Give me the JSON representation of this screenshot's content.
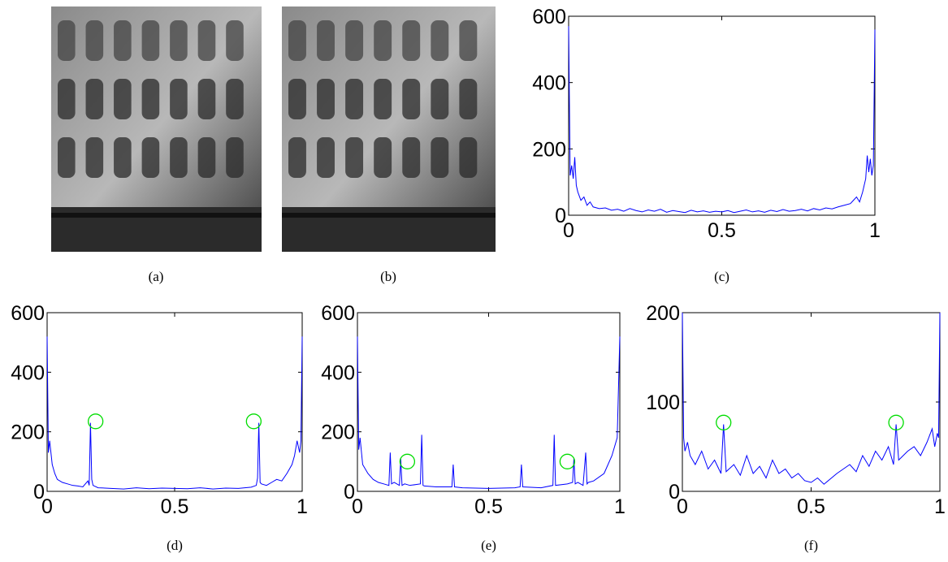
{
  "images": [
    {
      "caption": "(a)"
    },
    {
      "caption": "(b)"
    }
  ],
  "chart_data": [
    {
      "type": "line",
      "caption": "(c)",
      "xlim": [
        0,
        1
      ],
      "ylim": [
        0,
        600
      ],
      "xticks": [
        0,
        0.5,
        1
      ],
      "yticks": [
        0,
        200,
        400,
        600
      ],
      "series": [
        {
          "color": "#0000ff",
          "x": [
            0,
            0.005,
            0.01,
            0.015,
            0.02,
            0.025,
            0.03,
            0.04,
            0.05,
            0.06,
            0.07,
            0.08,
            0.1,
            0.12,
            0.14,
            0.16,
            0.18,
            0.2,
            0.22,
            0.24,
            0.26,
            0.28,
            0.3,
            0.32,
            0.34,
            0.36,
            0.38,
            0.4,
            0.42,
            0.44,
            0.46,
            0.48,
            0.5,
            0.52,
            0.54,
            0.56,
            0.58,
            0.6,
            0.62,
            0.64,
            0.66,
            0.68,
            0.7,
            0.72,
            0.74,
            0.76,
            0.78,
            0.8,
            0.82,
            0.84,
            0.86,
            0.88,
            0.9,
            0.92,
            0.93,
            0.94,
            0.95,
            0.96,
            0.97,
            0.975,
            0.98,
            0.985,
            0.99,
            0.995,
            1
          ],
          "values": [
            570,
            120,
            150,
            110,
            175,
            90,
            70,
            45,
            55,
            30,
            40,
            25,
            20,
            22,
            15,
            18,
            12,
            20,
            14,
            10,
            16,
            12,
            18,
            9,
            14,
            11,
            8,
            15,
            10,
            13,
            9,
            12,
            10,
            14,
            8,
            12,
            16,
            10,
            13,
            9,
            15,
            11,
            17,
            12,
            14,
            18,
            13,
            20,
            16,
            22,
            19,
            25,
            30,
            35,
            45,
            55,
            40,
            70,
            110,
            180,
            130,
            170,
            120,
            150,
            560
          ]
        }
      ]
    },
    {
      "type": "line",
      "caption": "(d)",
      "xlim": [
        0,
        1
      ],
      "ylim": [
        0,
        600
      ],
      "xticks": [
        0,
        0.5,
        1
      ],
      "yticks": [
        0,
        200,
        400,
        600
      ],
      "series": [
        {
          "color": "#0000ff",
          "x": [
            0,
            0.005,
            0.01,
            0.02,
            0.03,
            0.04,
            0.06,
            0.08,
            0.1,
            0.12,
            0.14,
            0.16,
            0.165,
            0.17,
            0.175,
            0.18,
            0.2,
            0.25,
            0.3,
            0.35,
            0.4,
            0.45,
            0.5,
            0.55,
            0.6,
            0.65,
            0.7,
            0.75,
            0.8,
            0.82,
            0.825,
            0.83,
            0.835,
            0.84,
            0.86,
            0.88,
            0.9,
            0.92,
            0.94,
            0.96,
            0.97,
            0.98,
            0.99,
            0.995,
            1
          ],
          "values": [
            520,
            130,
            170,
            90,
            60,
            40,
            30,
            25,
            20,
            18,
            15,
            35,
            20,
            230,
            40,
            20,
            12,
            10,
            8,
            12,
            9,
            11,
            10,
            9,
            12,
            8,
            11,
            10,
            14,
            20,
            45,
            230,
            30,
            25,
            20,
            30,
            40,
            35,
            60,
            90,
            120,
            170,
            130,
            170,
            520
          ]
        }
      ],
      "highlights": {
        "color": "#00dd00",
        "x": [
          0.19,
          0.81
        ],
        "y": [
          235,
          235
        ]
      }
    },
    {
      "type": "line",
      "caption": "(e)",
      "xlim": [
        0,
        1
      ],
      "ylim": [
        0,
        600
      ],
      "xticks": [
        0,
        0.5,
        1
      ],
      "yticks": [
        0,
        200,
        400,
        600
      ],
      "series": [
        {
          "color": "#0000ff",
          "x": [
            0,
            0.005,
            0.01,
            0.02,
            0.04,
            0.06,
            0.08,
            0.1,
            0.12,
            0.125,
            0.13,
            0.14,
            0.16,
            0.165,
            0.17,
            0.18,
            0.2,
            0.24,
            0.245,
            0.25,
            0.255,
            0.3,
            0.36,
            0.365,
            0.37,
            0.4,
            0.5,
            0.6,
            0.62,
            0.625,
            0.63,
            0.7,
            0.745,
            0.75,
            0.755,
            0.8,
            0.82,
            0.825,
            0.83,
            0.84,
            0.86,
            0.87,
            0.875,
            0.88,
            0.9,
            0.94,
            0.97,
            0.99,
            1
          ],
          "values": [
            520,
            140,
            180,
            90,
            60,
            40,
            30,
            25,
            20,
            130,
            25,
            30,
            20,
            110,
            20,
            25,
            20,
            25,
            190,
            20,
            18,
            15,
            15,
            90,
            15,
            12,
            10,
            12,
            15,
            90,
            15,
            12,
            20,
            190,
            20,
            25,
            30,
            110,
            25,
            30,
            20,
            130,
            25,
            30,
            35,
            60,
            120,
            180,
            520
          ]
        }
      ],
      "highlights": {
        "color": "#00dd00",
        "x": [
          0.19,
          0.8
        ],
        "y": [
          100,
          100
        ]
      }
    },
    {
      "type": "line",
      "caption": "(f)",
      "xlim": [
        0,
        1
      ],
      "ylim": [
        0,
        200
      ],
      "xticks": [
        0,
        0.5,
        1
      ],
      "yticks": [
        0,
        100,
        200
      ],
      "series": [
        {
          "color": "#0000ff",
          "x": [
            0,
            0.005,
            0.01,
            0.02,
            0.03,
            0.05,
            0.075,
            0.1,
            0.125,
            0.15,
            0.16,
            0.17,
            0.2,
            0.225,
            0.25,
            0.275,
            0.3,
            0.325,
            0.35,
            0.375,
            0.4,
            0.425,
            0.45,
            0.475,
            0.5,
            0.525,
            0.55,
            0.575,
            0.6,
            0.625,
            0.65,
            0.675,
            0.7,
            0.725,
            0.75,
            0.775,
            0.8,
            0.82,
            0.83,
            0.84,
            0.875,
            0.9,
            0.925,
            0.95,
            0.97,
            0.98,
            0.99,
            0.995,
            1
          ],
          "values": [
            200,
            60,
            45,
            55,
            40,
            30,
            45,
            25,
            35,
            20,
            75,
            22,
            30,
            18,
            40,
            20,
            28,
            15,
            35,
            20,
            25,
            15,
            20,
            12,
            10,
            15,
            8,
            14,
            20,
            25,
            30,
            22,
            40,
            28,
            45,
            35,
            50,
            30,
            75,
            35,
            45,
            50,
            40,
            55,
            70,
            50,
            65,
            60,
            200
          ]
        }
      ],
      "highlights": {
        "color": "#00dd00",
        "x": [
          0.16,
          0.83
        ],
        "y": [
          77,
          77
        ]
      }
    }
  ]
}
